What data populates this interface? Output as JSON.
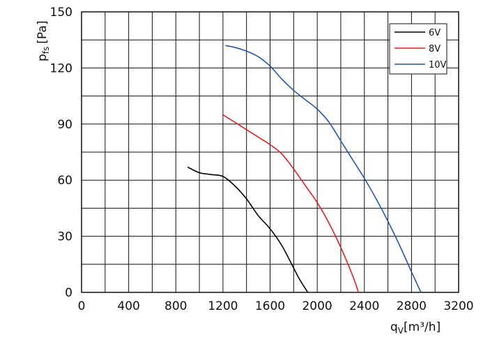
{
  "chart_data": {
    "type": "line",
    "xlabel": "q",
    "xlabel_sub": "V",
    "xlabel_unit": "[m³/h]",
    "ylabel": "p",
    "ylabel_sub": "fs",
    "ylabel_unit": "[Pa]",
    "xlim": [
      0,
      3200
    ],
    "ylim": [
      0,
      150
    ],
    "x_gridlines": [
      0,
      200,
      400,
      600,
      800,
      1000,
      1200,
      1400,
      1600,
      1800,
      2000,
      2200,
      2400,
      2600,
      2800,
      3000,
      3200
    ],
    "y_gridlines": [
      0,
      15,
      30,
      45,
      60,
      75,
      90,
      105,
      120,
      135,
      150
    ],
    "x_ticks": [
      "0",
      "400",
      "800",
      "1200",
      "1600",
      "2000",
      "2400",
      "2800",
      "3200"
    ],
    "y_ticks": [
      "0",
      "30",
      "60",
      "90",
      "120",
      "150"
    ],
    "grid": true,
    "legend_position": "top-right",
    "series": [
      {
        "name": "6V",
        "color": "#000000",
        "points": [
          [
            900,
            67
          ],
          [
            1000,
            64
          ],
          [
            1100,
            63
          ],
          [
            1200,
            62
          ],
          [
            1300,
            57
          ],
          [
            1400,
            50
          ],
          [
            1500,
            41
          ],
          [
            1600,
            34
          ],
          [
            1700,
            25
          ],
          [
            1800,
            13
          ],
          [
            1850,
            7
          ],
          [
            1920,
            0
          ]
        ]
      },
      {
        "name": "8V",
        "color": "#e02020",
        "points": [
          [
            1200,
            95
          ],
          [
            1300,
            91
          ],
          [
            1400,
            87
          ],
          [
            1500,
            83
          ],
          [
            1600,
            79
          ],
          [
            1700,
            74
          ],
          [
            1800,
            66
          ],
          [
            1900,
            57
          ],
          [
            2000,
            48
          ],
          [
            2100,
            37
          ],
          [
            2200,
            24
          ],
          [
            2300,
            9
          ],
          [
            2350,
            0
          ]
        ]
      },
      {
        "name": "10V",
        "color": "#2456a8",
        "points": [
          [
            1220,
            132
          ],
          [
            1300,
            131
          ],
          [
            1400,
            129
          ],
          [
            1500,
            126
          ],
          [
            1600,
            121
          ],
          [
            1700,
            114
          ],
          [
            1800,
            108
          ],
          [
            1900,
            103
          ],
          [
            2000,
            98
          ],
          [
            2100,
            91
          ],
          [
            2200,
            81
          ],
          [
            2300,
            71
          ],
          [
            2400,
            61
          ],
          [
            2500,
            50
          ],
          [
            2600,
            38
          ],
          [
            2700,
            25
          ],
          [
            2800,
            11
          ],
          [
            2880,
            0
          ]
        ]
      }
    ]
  }
}
